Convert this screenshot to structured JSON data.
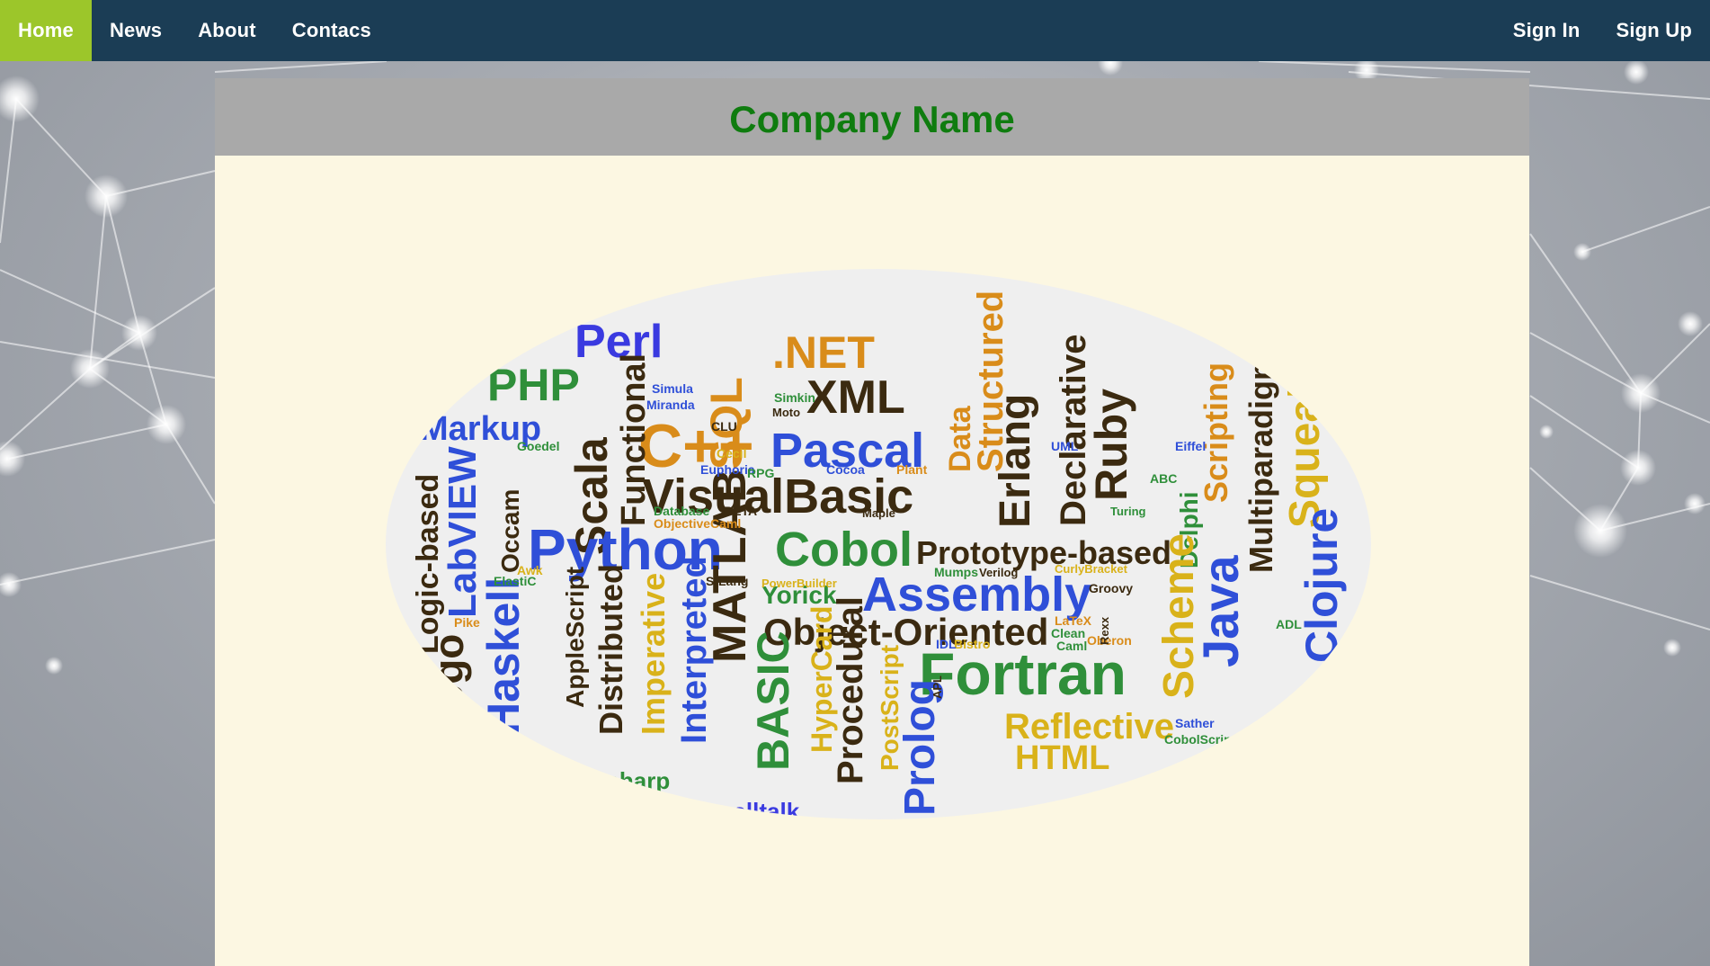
{
  "nav": {
    "left": [
      {
        "label": "Home",
        "active": true
      },
      {
        "label": "News",
        "active": false
      },
      {
        "label": "About",
        "active": false
      },
      {
        "label": "Contacs",
        "active": false
      }
    ],
    "right": [
      {
        "label": "Sign In"
      },
      {
        "label": "Sign Up"
      }
    ]
  },
  "page": {
    "title": "Company Name"
  },
  "colors": {
    "nav_bg": "#1b3d55",
    "nav_active": "#9cc62a",
    "header_bg": "#a9a9a9",
    "title_color": "#0f7c0f",
    "panel_bg": "#fcf7e2",
    "cloud_bg": "#efefef"
  },
  "word_cloud": {
    "words": [
      {
        "text": "Perl",
        "color": "#3a3ae0",
        "vertical": false
      },
      {
        "text": ".NET",
        "color": "#d98c1a",
        "vertical": false
      },
      {
        "text": "PHP",
        "color": "#2f8f3a",
        "vertical": false
      },
      {
        "text": "XML",
        "color": "#3b2a10",
        "vertical": false
      },
      {
        "text": "SQL",
        "color": "#d98c1a",
        "vertical": true
      },
      {
        "text": "C++",
        "color": "#d98c1a",
        "vertical": false
      },
      {
        "text": "Pascal",
        "color": "#2f4fd8",
        "vertical": false
      },
      {
        "text": "Structured",
        "color": "#d98c1a",
        "vertical": true
      },
      {
        "text": "Data",
        "color": "#d98c1a",
        "vertical": true
      },
      {
        "text": "Markup",
        "color": "#2f4fd8",
        "vertical": false
      },
      {
        "text": "Scala",
        "color": "#3b2a10",
        "vertical": true
      },
      {
        "text": "Functional",
        "color": "#3b2a10",
        "vertical": true
      },
      {
        "text": "VisualBasic",
        "color": "#3b2a10",
        "vertical": false
      },
      {
        "text": "Erlang",
        "color": "#3b2a10",
        "vertical": true
      },
      {
        "text": "Declarative",
        "color": "#3b2a10",
        "vertical": true
      },
      {
        "text": "Ruby",
        "color": "#3b2a10",
        "vertical": true
      },
      {
        "text": "Scripting",
        "color": "#d98c1a",
        "vertical": true
      },
      {
        "text": "Multiparadigm",
        "color": "#3b2a10",
        "vertical": true
      },
      {
        "text": "Squeak",
        "color": "#d9b21a",
        "vertical": true
      },
      {
        "text": "LabVIEW",
        "color": "#2f4fd8",
        "vertical": true
      },
      {
        "text": "Logic-based",
        "color": "#3b2a10",
        "vertical": true
      },
      {
        "text": "Occam",
        "color": "#3b2a10",
        "vertical": true
      },
      {
        "text": "Python",
        "color": "#2f4fd8",
        "vertical": false
      },
      {
        "text": "MATLAB",
        "color": "#3b2a10",
        "vertical": true
      },
      {
        "text": "Cobol",
        "color": "#2f8f3a",
        "vertical": false
      },
      {
        "text": "Prototype-based",
        "color": "#3b2a10",
        "vertical": false
      },
      {
        "text": "Delphi",
        "color": "#2f8f3a",
        "vertical": true
      },
      {
        "text": "Java",
        "color": "#2f4fd8",
        "vertical": true
      },
      {
        "text": "Clojure",
        "color": "#2f4fd8",
        "vertical": true
      },
      {
        "text": "Assembly",
        "color": "#2f4fd8",
        "vertical": false
      },
      {
        "text": "Yorick",
        "color": "#2f8f3a",
        "vertical": false
      },
      {
        "text": "Object-Oriented",
        "color": "#3b2a10",
        "vertical": false
      },
      {
        "text": "Scheme",
        "color": "#d9b21a",
        "vertical": true
      },
      {
        "text": "Haskell",
        "color": "#2f4fd8",
        "vertical": true
      },
      {
        "text": "Logo",
        "color": "#3b2a10",
        "vertical": true
      },
      {
        "text": "AppleScript",
        "color": "#3b2a10",
        "vertical": true
      },
      {
        "text": "Distributed",
        "color": "#3b2a10",
        "vertical": true
      },
      {
        "text": "Imperative",
        "color": "#d9b21a",
        "vertical": true
      },
      {
        "text": "Interpreted",
        "color": "#2f4fd8",
        "vertical": true
      },
      {
        "text": "BASIC",
        "color": "#2f8f3a",
        "vertical": true
      },
      {
        "text": "HyperCard",
        "color": "#d9b21a",
        "vertical": true
      },
      {
        "text": "Procedural",
        "color": "#3b2a10",
        "vertical": true
      },
      {
        "text": "Fortran",
        "color": "#2f8f3a",
        "vertical": false
      },
      {
        "text": "PostScript",
        "color": "#d9b21a",
        "vertical": true
      },
      {
        "text": "Prolog",
        "color": "#2f4fd8",
        "vertical": true
      },
      {
        "text": "Reflective",
        "color": "#d9b21a",
        "vertical": false
      },
      {
        "text": "HTML",
        "color": "#d9b21a",
        "vertical": false
      },
      {
        "text": "C-sharp",
        "color": "#2f8f3a",
        "vertical": false
      },
      {
        "text": "Smalltalk",
        "color": "#3a3ae0",
        "vertical": false
      },
      {
        "text": "Simula",
        "color": "#2f4fd8",
        "vertical": false
      },
      {
        "text": "Miranda",
        "color": "#2f4fd8",
        "vertical": false
      },
      {
        "text": "Euphoria",
        "color": "#2f4fd8",
        "vertical": false
      },
      {
        "text": "Database",
        "color": "#2f8f3a",
        "vertical": false
      },
      {
        "text": "ObjectiveCaml",
        "color": "#d98c1a",
        "vertical": false
      },
      {
        "text": "CurlyBracket",
        "color": "#d9b21a",
        "vertical": false
      },
      {
        "text": "Groovy",
        "color": "#3b2a10",
        "vertical": false
      },
      {
        "text": "Verilog",
        "color": "#3b2a10",
        "vertical": false
      },
      {
        "text": "Mumps",
        "color": "#2f8f3a",
        "vertical": false
      },
      {
        "text": "Sather",
        "color": "#2f4fd8",
        "vertical": false
      },
      {
        "text": "CobolScript",
        "color": "#2f8f3a",
        "vertical": false
      },
      {
        "text": "Eiffel",
        "color": "#2f4fd8",
        "vertical": false
      },
      {
        "text": "Turing",
        "color": "#2f8f3a",
        "vertical": false
      },
      {
        "text": "Cocoa",
        "color": "#2f4fd8",
        "vertical": false
      },
      {
        "text": "Plant",
        "color": "#d98c1a",
        "vertical": false
      },
      {
        "text": "Maple",
        "color": "#3b2a10",
        "vertical": false
      },
      {
        "text": "RPG",
        "color": "#2f8f3a",
        "vertical": false
      },
      {
        "text": "UML",
        "color": "#2f4fd8",
        "vertical": false
      },
      {
        "text": "ABC",
        "color": "#2f8f3a",
        "vertical": false
      },
      {
        "text": "Caml",
        "color": "#2f8f3a",
        "vertical": false
      },
      {
        "text": "Oberon",
        "color": "#d98c1a",
        "vertical": false
      },
      {
        "text": "Clean",
        "color": "#2f8f3a",
        "vertical": false
      },
      {
        "text": "LaTeX",
        "color": "#d98c1a",
        "vertical": false
      },
      {
        "text": "Bistro",
        "color": "#d9b21a",
        "vertical": false
      },
      {
        "text": "IDL",
        "color": "#2f4fd8",
        "vertical": false
      },
      {
        "text": "S-Lang",
        "color": "#3b2a10",
        "vertical": false
      },
      {
        "text": "PowerBuilder",
        "color": "#d9b21a",
        "vertical": false
      },
      {
        "text": "Goedel",
        "color": "#2f8f3a",
        "vertical": false
      },
      {
        "text": "Awk",
        "color": "#d9b21a",
        "vertical": false
      },
      {
        "text": "ElastiC",
        "color": "#2f8f3a",
        "vertical": false
      },
      {
        "text": "Pike",
        "color": "#d98c1a",
        "vertical": false
      },
      {
        "text": "Simkin",
        "color": "#2f8f3a",
        "vertical": false
      },
      {
        "text": "CLU",
        "color": "#3b2a10",
        "vertical": false
      },
      {
        "text": "Moto",
        "color": "#3b2a10",
        "vertical": false
      },
      {
        "text": "ADL",
        "color": "#2f8f3a",
        "vertical": false
      },
      {
        "text": "BETA",
        "color": "#3b2a10",
        "vertical": false
      },
      {
        "text": "APL",
        "color": "#3b2a10",
        "vertical": true
      },
      {
        "text": "Rexx",
        "color": "#3b2a10",
        "vertical": true
      },
      {
        "text": "Cecil",
        "color": "#d9b21a",
        "vertical": false
      }
    ]
  }
}
